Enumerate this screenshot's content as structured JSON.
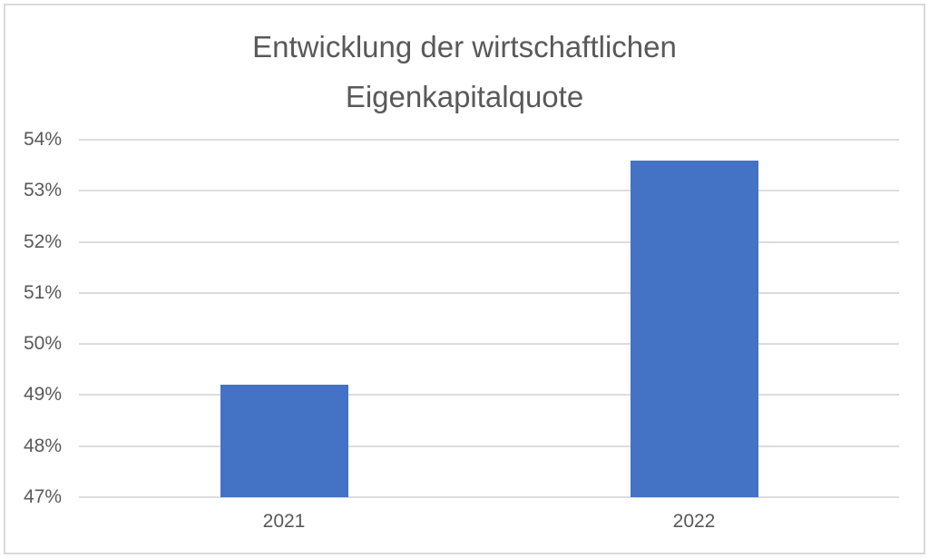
{
  "chart_data": {
    "type": "bar",
    "title": "Entwicklung der wirtschaftlichen Eigenkapitalquote",
    "title_lines": [
      "Entwicklung der wirtschaftlichen",
      "Eigenkapitalquote"
    ],
    "categories": [
      "2021",
      "2022"
    ],
    "values": [
      49.2,
      53.6
    ],
    "unit": "%",
    "ylim": [
      47,
      54
    ],
    "ytick_step": 1,
    "ytick_labels": [
      "47%",
      "48%",
      "49%",
      "50%",
      "51%",
      "52%",
      "53%",
      "54%"
    ],
    "xlabel": "",
    "ylabel": "",
    "grid": true,
    "legend": false
  },
  "colors": {
    "bar": "#4472c4",
    "title_text": "#595959",
    "axis_text": "#595959",
    "gridline": "#dcdcdc",
    "frame_border": "#d9d9d9",
    "background": "#ffffff"
  }
}
